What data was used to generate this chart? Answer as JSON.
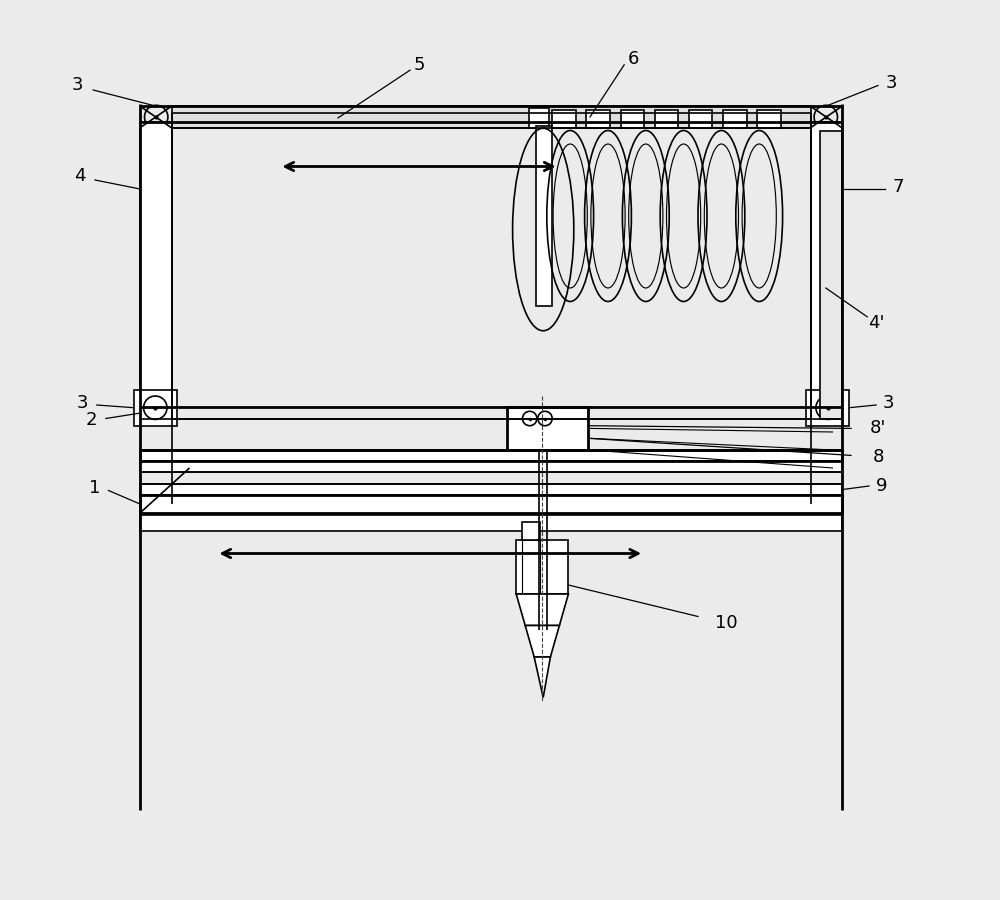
{
  "bg_color": "#ebebeb",
  "line_color": "#000000",
  "lw": 1.2,
  "lw_thick": 2.0,
  "fig_width": 10.0,
  "fig_height": 9.0
}
